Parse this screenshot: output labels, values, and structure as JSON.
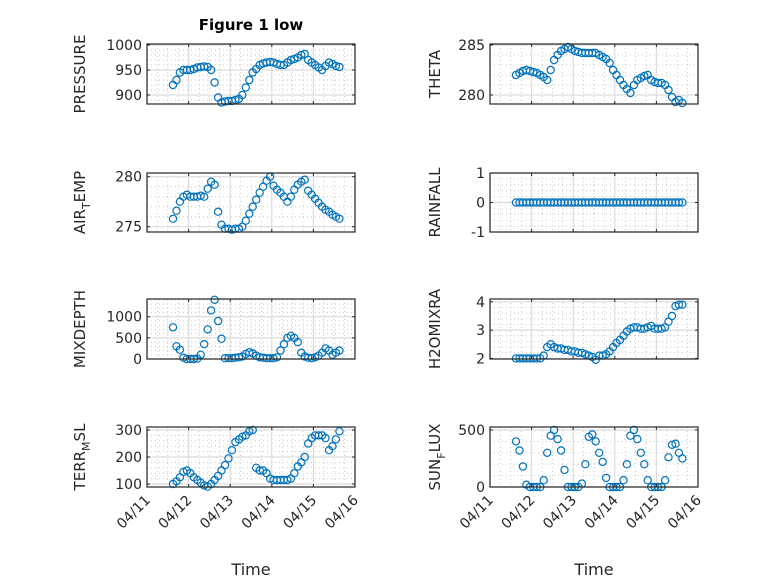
{
  "figure_title": "Figure 1 low",
  "marker_color": "#0072BD",
  "chart_data": {
    "type": "scatter",
    "title": "Figure 1 low",
    "xlabel": "Time",
    "x_unit": "hours since 04/11 00:00",
    "xlim_hours": [
      0,
      120
    ],
    "xtick_labels": [
      "04/11",
      "04/12",
      "04/13",
      "04/14",
      "04/15",
      "04/16"
    ],
    "grid": "major and minor",
    "x_hours": [
      15,
      17,
      19,
      21,
      23,
      25,
      27,
      29,
      31,
      33,
      35,
      37,
      39,
      41,
      43,
      45,
      47,
      49,
      51,
      53,
      55,
      57,
      59,
      61,
      63,
      65,
      67,
      69,
      71,
      73,
      75,
      77,
      79,
      81,
      83,
      85,
      87,
      89,
      91,
      93,
      95,
      97,
      99,
      101,
      103,
      105,
      107,
      109,
      111
    ],
    "panels": [
      {
        "id": "pressure",
        "ylabel": "PRESSURE",
        "ylabel_parts": [
          "PRESSURE",
          "",
          ""
        ],
        "col": 0,
        "row": 0,
        "ylim": [
          882,
          1002
        ],
        "yticks": [
          900,
          950,
          1000
        ],
        "values": [
          920,
          930,
          945,
          950,
          950,
          950,
          952,
          955,
          956,
          957,
          956,
          950,
          925,
          895,
          885,
          887,
          888,
          888,
          890,
          892,
          900,
          915,
          930,
          945,
          952,
          960,
          963,
          965,
          966,
          965,
          962,
          960,
          960,
          965,
          970,
          972,
          975,
          980,
          982,
          970,
          965,
          960,
          955,
          950,
          958,
          965,
          962,
          958,
          956
        ]
      },
      {
        "id": "theta",
        "ylabel": "THETA",
        "ylabel_parts": [
          "THETA",
          "",
          ""
        ],
        "col": 1,
        "row": 0,
        "ylim": [
          279.1,
          285.1
        ],
        "yticks": [
          280,
          285
        ],
        "values": [
          282.0,
          282.2,
          282.4,
          282.5,
          282.4,
          282.3,
          282.2,
          282.0,
          281.8,
          281.5,
          282.5,
          283.5,
          284.0,
          284.4,
          284.6,
          284.8,
          284.6,
          284.4,
          284.3,
          284.2,
          284.2,
          284.2,
          284.2,
          284.2,
          284.0,
          283.8,
          283.6,
          283.2,
          282.5,
          282.0,
          281.5,
          281.0,
          280.6,
          280.2,
          281.0,
          281.5,
          281.7,
          281.9,
          282.0,
          281.5,
          281.3,
          281.2,
          281.2,
          281.0,
          280.5,
          279.8,
          279.3,
          279.5,
          279.2
        ]
      },
      {
        "id": "air_temp",
        "ylabel": "AIR_TEMP",
        "ylabel_parts": [
          "AIR",
          "T",
          "EMP"
        ],
        "col": 0,
        "row": 1,
        "ylim": [
          274.47,
          280.37
        ],
        "yticks": [
          275,
          280
        ],
        "values": [
          275.8,
          276.6,
          277.5,
          278.0,
          278.2,
          278.0,
          278.0,
          278.0,
          278.1,
          278.0,
          278.8,
          279.5,
          279.2,
          276.5,
          275.2,
          274.8,
          274.8,
          274.7,
          274.8,
          274.8,
          275.0,
          275.6,
          276.3,
          277.0,
          277.7,
          278.4,
          279.0,
          279.6,
          280.0,
          279.1,
          278.7,
          278.4,
          278.0,
          277.5,
          278.0,
          278.7,
          279.2,
          279.5,
          279.7,
          278.6,
          278.2,
          277.8,
          277.4,
          277.0,
          276.7,
          276.5,
          276.2,
          276.0,
          275.8
        ]
      },
      {
        "id": "rainfall",
        "ylabel": "RAINFALL",
        "ylabel_parts": [
          "RAINFALL",
          "",
          ""
        ],
        "col": 1,
        "row": 1,
        "ylim": [
          -1,
          1
        ],
        "yticks": [
          -1,
          0,
          1
        ],
        "values": [
          0,
          0,
          0,
          0,
          0,
          0,
          0,
          0,
          0,
          0,
          0,
          0,
          0,
          0,
          0,
          0,
          0,
          0,
          0,
          0,
          0,
          0,
          0,
          0,
          0,
          0,
          0,
          0,
          0,
          0,
          0,
          0,
          0,
          0,
          0,
          0,
          0,
          0,
          0,
          0,
          0,
          0,
          0,
          0,
          0,
          0,
          0,
          0,
          0
        ]
      },
      {
        "id": "mixdepth",
        "ylabel": "MIXDEPTH",
        "ylabel_parts": [
          "MIXDEPTH",
          "",
          ""
        ],
        "col": 0,
        "row": 2,
        "ylim": [
          0,
          1420
        ],
        "yticks": [
          0,
          500,
          1000
        ],
        "values": [
          750,
          300,
          220,
          30,
          0,
          0,
          0,
          10,
          100,
          350,
          700,
          1150,
          1400,
          900,
          480,
          20,
          20,
          20,
          30,
          40,
          60,
          120,
          160,
          130,
          80,
          40,
          30,
          20,
          20,
          20,
          40,
          200,
          350,
          500,
          550,
          500,
          400,
          150,
          60,
          30,
          20,
          40,
          80,
          150,
          250,
          200,
          100,
          150,
          200
        ]
      },
      {
        "id": "h2omixra",
        "ylabel": "H2OMIXRA",
        "ylabel_parts": [
          "H2OMIXRA",
          "",
          ""
        ],
        "col": 1,
        "row": 2,
        "ylim": [
          1.98,
          4.1
        ],
        "yticks": [
          2,
          3,
          4
        ],
        "values": [
          2.0,
          2.0,
          2.0,
          2.0,
          2.0,
          2.0,
          2.0,
          2.0,
          2.1,
          2.4,
          2.5,
          2.4,
          2.35,
          2.35,
          2.3,
          2.3,
          2.25,
          2.25,
          2.2,
          2.2,
          2.15,
          2.1,
          2.05,
          1.95,
          2.1,
          2.1,
          2.15,
          2.25,
          2.4,
          2.55,
          2.65,
          2.8,
          2.95,
          3.05,
          3.1,
          3.1,
          3.05,
          3.05,
          3.1,
          3.15,
          3.05,
          3.05,
          3.05,
          3.1,
          3.3,
          3.5,
          3.85,
          3.9,
          3.9
        ]
      },
      {
        "id": "terr_msl",
        "ylabel": "TERR_MSL",
        "ylabel_parts": [
          "TERR",
          "M",
          "SL"
        ],
        "col": 0,
        "row": 3,
        "ylim": [
          89,
          311
        ],
        "yticks": [
          100,
          200,
          300
        ],
        "values": [
          100,
          110,
          125,
          145,
          150,
          140,
          125,
          115,
          105,
          95,
          90,
          100,
          115,
          130,
          150,
          170,
          195,
          225,
          255,
          265,
          275,
          280,
          295,
          300,
          160,
          150,
          150,
          140,
          120,
          115,
          115,
          115,
          115,
          115,
          120,
          140,
          165,
          180,
          200,
          250,
          270,
          280,
          280,
          280,
          270,
          225,
          240,
          265,
          295
        ]
      },
      {
        "id": "sun_flux",
        "ylabel": "SUN_FLUX",
        "ylabel_parts": [
          "SUN",
          "F",
          "LUX"
        ],
        "col": 1,
        "row": 3,
        "ylim": [
          0,
          526
        ],
        "yticks": [
          0,
          500
        ],
        "values": [
          400,
          320,
          180,
          20,
          0,
          0,
          0,
          0,
          60,
          300,
          450,
          500,
          420,
          320,
          150,
          0,
          0,
          0,
          0,
          30,
          200,
          440,
          460,
          400,
          300,
          220,
          80,
          0,
          0,
          0,
          0,
          60,
          200,
          450,
          500,
          420,
          300,
          200,
          60,
          0,
          0,
          0,
          0,
          60,
          260,
          370,
          380,
          300,
          250
        ]
      }
    ]
  }
}
